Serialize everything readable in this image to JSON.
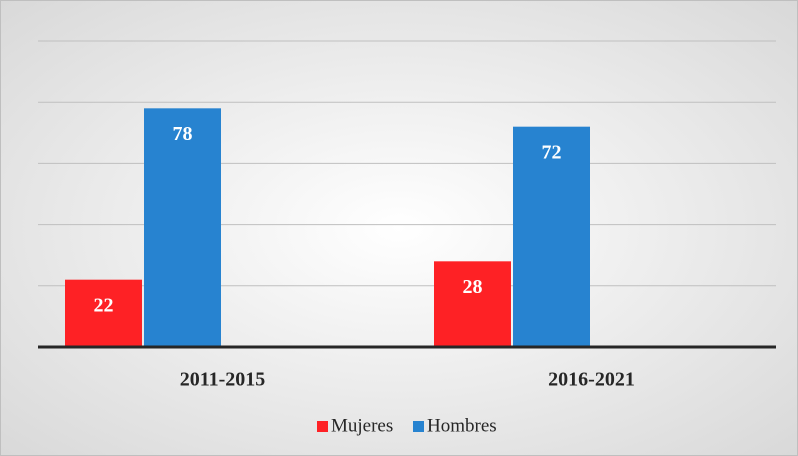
{
  "chart_data": {
    "type": "bar",
    "categories": [
      "2011-2015",
      "2016-2021"
    ],
    "series": [
      {
        "name": "Mujeres",
        "color": "#fe2125",
        "values": [
          22,
          28
        ]
      },
      {
        "name": "Hombres",
        "color": "#2783d0",
        "values": [
          78,
          72
        ]
      }
    ],
    "ylim": [
      0,
      100
    ],
    "yticks": [
      0,
      20,
      40,
      60,
      80,
      100
    ],
    "grid": true,
    "legend": "bottom"
  }
}
